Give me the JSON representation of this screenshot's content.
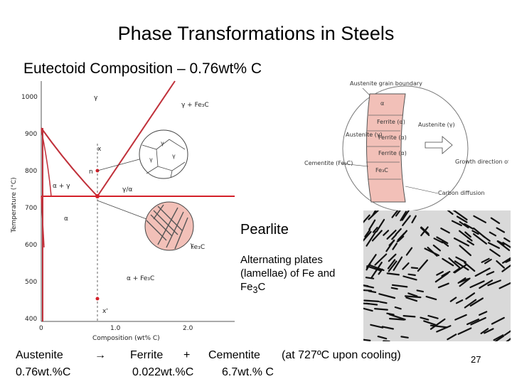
{
  "title": "Phase Transformations in Steels",
  "subtitle": "Eutectoid Composition – 0.76wt% C",
  "phase_diagram": {
    "y_axis_label": "Temperature (°C)",
    "x_axis_label": "Composition (wt% C)",
    "y_ticks": [
      "1000",
      "900",
      "800",
      "700",
      "600",
      "500",
      "400"
    ],
    "x_ticks": [
      "0",
      "1.0",
      "2.0"
    ],
    "region_labels": {
      "gamma": "γ",
      "gamma_fe3c": "γ + Fe₃C",
      "alpha_gamma": "α + γ",
      "gamma_alpha": "γ/α",
      "alpha": "α",
      "alpha_fe3c": "α + Fe₃C",
      "fe3c": "Fe₃C"
    },
    "point_labels": [
      "x",
      "n",
      "x'"
    ]
  },
  "schematic": {
    "labels": {
      "austenite_grain_boundary": "Austenite grain boundary",
      "alpha": "α",
      "ferrite_top": "Ferrite (α)",
      "austenite_gamma": "Austenite (γ)",
      "austenite_right": "Austenite (γ)",
      "ferrite_mid": "Ferrite (α)",
      "ferrite_low": "Ferrite (α)",
      "cementite": "Cementite (Fe₃C)",
      "cementite_band": "Fe₃C",
      "growth_direction": "Growth direction of pearlite",
      "carbon_diffusion": "Carbon diffusion"
    }
  },
  "pearlite": {
    "title": "Pearlite",
    "description_pre": "Alternating plates (lamellae) of Fe and Fe",
    "description_sub": "3",
    "description_post": "C"
  },
  "equation": {
    "austenite": "Austenite",
    "austenite_comp": "0.76wt.%C",
    "arrow": "→",
    "ferrite": "Ferrite",
    "plus": "+",
    "ferrite_comp": "0.022wt.%C",
    "cementite": "Cementite",
    "cementite_comp": "6.7wt.% C",
    "condition": "(at 727ºC upon cooling)"
  },
  "page_number": "27",
  "colors": {
    "phase_line": "#c0303a",
    "eutectoid_line": "#d4202a",
    "pink_fill": "#f2c0b8",
    "micro_bg": "#d9d9d9"
  }
}
